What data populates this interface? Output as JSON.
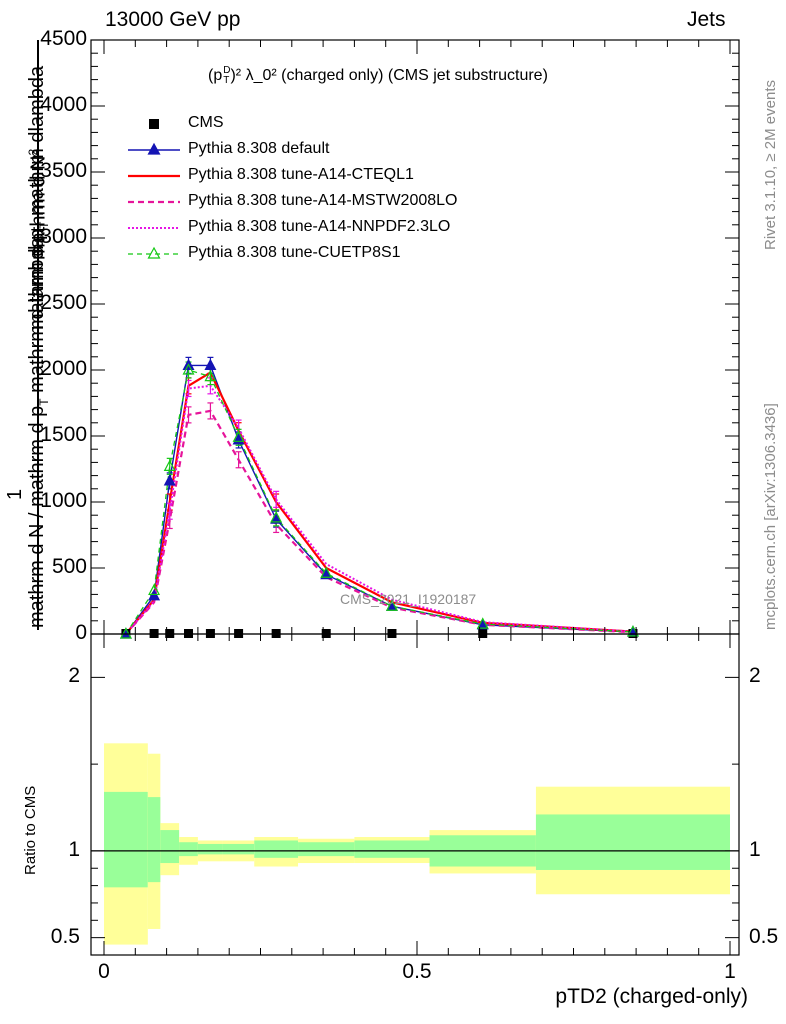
{
  "header": {
    "left": "13000 GeV pp",
    "right": "Jets"
  },
  "side_texts": {
    "rivet": "Rivet 3.1.10, ≥ 2M events",
    "mcplots": "mcplots.cern.ch [arXiv:1306.3436]"
  },
  "watermark": "CMS_2021_I1920187",
  "chart_data": [
    {
      "type": "line",
      "title": "(p_T^D)^2 λ_0^2 (charged only) (CMS jet substructure)",
      "title_parts": {
        "p": "(p",
        "sub": "T",
        "sup": "D",
        "paren_sq": ")²",
        "rest": " λ_0² (charged only) (CMS jet substructure)"
      },
      "ylabel_lines": [
        "mathrm d N / mathrm d p_T mathrm d lambda",
        "mathrm d^2N",
        "1",
        "mathrm d N / mathrm d p_T mathrm d lambda"
      ],
      "ylabel_pieces": {
        "num_a": "mathrm d",
        "num_b": "N",
        "num_sup": "2",
        "num_c": "mathrm d p",
        "num_c_sub": "T",
        "num_d": " mathrm dlambda",
        "one": "1",
        "den_a": "mathrm d N",
        "den_b": " / mathrm d p",
        "den_b_sub": "T",
        "den_c": " mathrm d lambda"
      },
      "xlim": [
        0,
        1
      ],
      "ylim": [
        0,
        4500
      ],
      "yticks": [
        0,
        500,
        1000,
        1500,
        2000,
        2500,
        3000,
        3500,
        4000,
        4500
      ],
      "ytick_labels": [
        "0",
        "500",
        "1000",
        "1500",
        "2000",
        "2500",
        "3000",
        "3500",
        "4000",
        "4500"
      ],
      "legend_position": "top-left",
      "x": [
        0.035,
        0.08,
        0.105,
        0.135,
        0.17,
        0.215,
        0.275,
        0.355,
        0.46,
        0.605,
        0.845
      ],
      "series": [
        {
          "name": "CMS",
          "values": [
            0,
            0,
            0,
            0,
            0,
            0,
            0,
            0,
            0,
            0,
            0
          ],
          "color": "#000000"
        },
        {
          "name": "Pythia 8.308 default",
          "values": [
            0,
            290,
            1160,
            2035,
            2035,
            1470,
            870,
            450,
            210,
            70,
            15
          ],
          "color": "#1414b4"
        },
        {
          "name": "Pythia 8.308 tune-A14-CTEQL1",
          "values": [
            0,
            260,
            1000,
            1880,
            1980,
            1540,
            1000,
            500,
            240,
            85,
            18
          ],
          "color": "#ff0000"
        },
        {
          "name": "Pythia 8.308 tune-A14-MSTW2008LO",
          "values": [
            0,
            240,
            860,
            1660,
            1690,
            1320,
            830,
            430,
            200,
            70,
            14
          ],
          "color": "#e6149a"
        },
        {
          "name": "Pythia 8.308 tune-A14-NNPDF2.3LO",
          "values": [
            0,
            250,
            930,
            1860,
            1880,
            1560,
            1020,
            530,
            260,
            90,
            18
          ],
          "color": "#e614e6"
        },
        {
          "name": "Pythia 8.308 tune-CUETP8S1",
          "values": [
            0,
            330,
            1270,
            2000,
            1950,
            1490,
            880,
            460,
            210,
            75,
            16
          ],
          "color": "#14c814"
        }
      ]
    },
    {
      "type": "area",
      "ylabel": "Ratio to CMS",
      "xlabel": "pTD2 (charged-only)",
      "xlim": [
        0,
        1
      ],
      "ylim": [
        0.4,
        2.25
      ],
      "xticks": [
        0,
        0.5,
        1
      ],
      "xtick_labels": [
        "0",
        "0.5",
        "1"
      ],
      "yticks": [
        0.5,
        1,
        2
      ],
      "ytick_labels": [
        "0.5",
        "1",
        "2"
      ],
      "bins": [
        {
          "x0": 0.0,
          "x1": 0.07,
          "inner": [
            0.79,
            1.34
          ],
          "outer": [
            0.46,
            1.62
          ]
        },
        {
          "x0": 0.07,
          "x1": 0.09,
          "inner": [
            0.82,
            1.31
          ],
          "outer": [
            0.55,
            1.56
          ]
        },
        {
          "x0": 0.09,
          "x1": 0.12,
          "inner": [
            0.93,
            1.12
          ],
          "outer": [
            0.86,
            1.16
          ]
        },
        {
          "x0": 0.12,
          "x1": 0.15,
          "inner": [
            0.97,
            1.05
          ],
          "outer": [
            0.92,
            1.08
          ]
        },
        {
          "x0": 0.15,
          "x1": 0.19,
          "inner": [
            0.98,
            1.04
          ],
          "outer": [
            0.94,
            1.06
          ]
        },
        {
          "x0": 0.19,
          "x1": 0.24,
          "inner": [
            0.98,
            1.04
          ],
          "outer": [
            0.94,
            1.06
          ]
        },
        {
          "x0": 0.24,
          "x1": 0.31,
          "inner": [
            0.96,
            1.06
          ],
          "outer": [
            0.91,
            1.08
          ]
        },
        {
          "x0": 0.31,
          "x1": 0.4,
          "inner": [
            0.97,
            1.05
          ],
          "outer": [
            0.93,
            1.07
          ]
        },
        {
          "x0": 0.4,
          "x1": 0.52,
          "inner": [
            0.96,
            1.06
          ],
          "outer": [
            0.93,
            1.08
          ]
        },
        {
          "x0": 0.52,
          "x1": 0.69,
          "inner": [
            0.91,
            1.09
          ],
          "outer": [
            0.87,
            1.12
          ]
        },
        {
          "x0": 0.69,
          "x1": 1.0,
          "inner": [
            0.89,
            1.21
          ],
          "outer": [
            0.75,
            1.37
          ]
        }
      ],
      "inner_color": "#99ff99",
      "outer_color": "#ffff99",
      "reference_line": 1
    }
  ]
}
